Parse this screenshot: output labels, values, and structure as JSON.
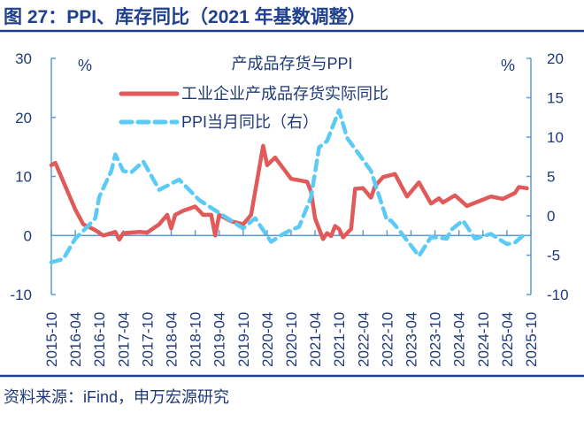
{
  "figure_title": "图 27：PPI、库存同比（2021 年基数调整）",
  "source": "资料来源：iFind，申万宏源研究",
  "chart_data": {
    "type": "line",
    "title": "产成品存货与PPI",
    "left_unit": "%",
    "right_unit": "%",
    "left_ylim": [
      -10,
      30
    ],
    "left_yticks": [
      -10,
      0,
      10,
      20,
      30
    ],
    "right_ylim": [
      -10,
      20
    ],
    "right_yticks": [
      -10,
      -5,
      0,
      5,
      10,
      15,
      20
    ],
    "x_range": [
      "2015-10",
      "2025-10"
    ],
    "x_tick_labels": [
      "2015-10",
      "2016-04",
      "2016-10",
      "2017-04",
      "2017-10",
      "2018-04",
      "2018-10",
      "2019-04",
      "2019-10",
      "2020-04",
      "2020-10",
      "2021-04",
      "2021-10",
      "2022-04",
      "2022-10",
      "2023-04",
      "2023-10",
      "2024-04",
      "2024-10",
      "2025-04",
      "2025-10"
    ],
    "grid": false,
    "legend_placement": "top-center",
    "colors": {
      "inventory": "#E05A5A",
      "ppi": "#5BCBF5",
      "axis": "#5B9BD5",
      "text": "#1F3A7A",
      "title": "#1F3F8F"
    },
    "series": [
      {
        "name": "工业企业产成品存货实际同比",
        "axis": "left",
        "style": "solid",
        "points": [
          [
            "2015-10",
            11.9
          ],
          [
            "2015-11",
            12.3
          ],
          [
            "2016-04",
            4.4
          ],
          [
            "2016-06",
            1.9
          ],
          [
            "2016-09",
            0.9
          ],
          [
            "2016-11",
            0
          ],
          [
            "2017-02",
            0.6
          ],
          [
            "2017-03",
            -0.7
          ],
          [
            "2017-04",
            0.4
          ],
          [
            "2017-08",
            0.6
          ],
          [
            "2017-10",
            0.5
          ],
          [
            "2018-01",
            1.9
          ],
          [
            "2018-03",
            3.5
          ],
          [
            "2018-04",
            1.2
          ],
          [
            "2018-05",
            3.5
          ],
          [
            "2018-07",
            4.2
          ],
          [
            "2018-10",
            4.9
          ],
          [
            "2018-12",
            3.5
          ],
          [
            "2019-02",
            3.5
          ],
          [
            "2019-03",
            0
          ],
          [
            "2019-04",
            3.5
          ],
          [
            "2019-07",
            2.4
          ],
          [
            "2019-10",
            1.9
          ],
          [
            "2019-12",
            3.5
          ],
          [
            "2020-03",
            15.2
          ],
          [
            "2020-04",
            11.9
          ],
          [
            "2020-06",
            13.2
          ],
          [
            "2020-08",
            11.4
          ],
          [
            "2020-10",
            9.6
          ],
          [
            "2021-02",
            9.1
          ],
          [
            "2021-03",
            7.4
          ],
          [
            "2021-04",
            2.9
          ],
          [
            "2021-06",
            -0.6
          ],
          [
            "2021-07",
            0.4
          ],
          [
            "2021-08",
            -0.1
          ],
          [
            "2021-09",
            1.6
          ],
          [
            "2021-10",
            1.1
          ],
          [
            "2021-11",
            -0.3
          ],
          [
            "2022-01",
            1.1
          ],
          [
            "2022-02",
            7.9
          ],
          [
            "2022-04",
            8.0
          ],
          [
            "2022-06",
            6.4
          ],
          [
            "2022-07",
            8.4
          ],
          [
            "2022-09",
            9.9
          ],
          [
            "2022-12",
            10.4
          ],
          [
            "2023-03",
            6.6
          ],
          [
            "2023-06",
            9.0
          ],
          [
            "2023-09",
            5.4
          ],
          [
            "2023-11",
            6.3
          ],
          [
            "2023-12",
            5.6
          ],
          [
            "2024-03",
            6.8
          ],
          [
            "2024-06",
            5.0
          ],
          [
            "2024-09",
            5.8
          ],
          [
            "2024-12",
            6.6
          ],
          [
            "2025-03",
            6.2
          ],
          [
            "2025-06",
            7.2
          ],
          [
            "2025-07",
            8.2
          ],
          [
            "2025-09",
            8.0
          ]
        ]
      },
      {
        "name": "PPI当月同比（右）",
        "axis": "right",
        "style": "dashed",
        "points": [
          [
            "2015-10",
            -5.9
          ],
          [
            "2016-01",
            -5.5
          ],
          [
            "2016-04",
            -2.9
          ],
          [
            "2016-07",
            -1.4
          ],
          [
            "2016-09",
            -0.3
          ],
          [
            "2016-10",
            2.4
          ],
          [
            "2017-01",
            5.7
          ],
          [
            "2017-02",
            7.8
          ],
          [
            "2017-04",
            5.7
          ],
          [
            "2017-06",
            5.5
          ],
          [
            "2017-09",
            6.9
          ],
          [
            "2018-01",
            3.3
          ],
          [
            "2018-06",
            4.6
          ],
          [
            "2018-11",
            2.0
          ],
          [
            "2019-03",
            0.7
          ],
          [
            "2019-10",
            -1.6
          ],
          [
            "2020-01",
            -0.3
          ],
          [
            "2020-05",
            -3.3
          ],
          [
            "2020-08",
            -2.3
          ],
          [
            "2020-10",
            -1.8
          ],
          [
            "2020-12",
            -1.4
          ],
          [
            "2021-03",
            2.4
          ],
          [
            "2021-05",
            8.7
          ],
          [
            "2021-07",
            9.5
          ],
          [
            "2021-10",
            13.4
          ],
          [
            "2021-12",
            9.9
          ],
          [
            "2022-03",
            7.8
          ],
          [
            "2022-06",
            5.7
          ],
          [
            "2022-10",
            -0.6
          ],
          [
            "2022-11",
            -0.6
          ],
          [
            "2023-01",
            -1.8
          ],
          [
            "2023-06",
            -5.1
          ],
          [
            "2023-09",
            -2.7
          ],
          [
            "2024-01",
            -2.9
          ],
          [
            "2024-02",
            -1.8
          ],
          [
            "2024-05",
            -0.6
          ],
          [
            "2024-08",
            -2.9
          ],
          [
            "2024-12",
            -2.3
          ],
          [
            "2025-04",
            -3.6
          ],
          [
            "2025-06",
            -3.4
          ],
          [
            "2025-09",
            -2.1
          ]
        ]
      }
    ]
  }
}
